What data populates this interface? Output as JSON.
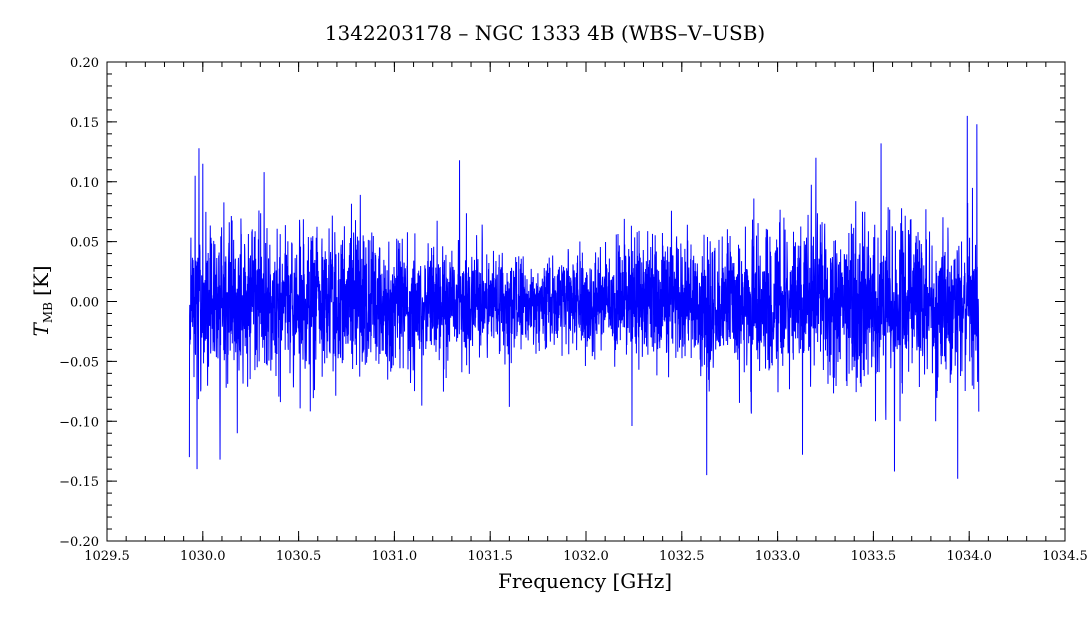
{
  "chart_data": {
    "type": "line",
    "title": "1342203178 – NGC 1333 4B (WBS–V–USB)",
    "xlabel": "Frequency [GHz]",
    "ylabel_main": "T",
    "ylabel_sub": "MB",
    "ylabel_unit": "[K]",
    "xlim": [
      1029.5,
      1034.5
    ],
    "ylim": [
      -0.2,
      0.2
    ],
    "xticks": [
      1029.5,
      1030.0,
      1030.5,
      1031.0,
      1031.5,
      1032.0,
      1032.5,
      1033.0,
      1033.5,
      1034.0,
      1034.5
    ],
    "xtick_labels": [
      "1029.5",
      "1030.0",
      "1030.5",
      "1031.0",
      "1031.5",
      "1032.0",
      "1032.5",
      "1033.0",
      "1033.5",
      "1034.0",
      "1034.5"
    ],
    "yticks": [
      -0.2,
      -0.15,
      -0.1,
      -0.05,
      0.0,
      0.05,
      0.1,
      0.15,
      0.2
    ],
    "ytick_labels": [
      "−0.20",
      "−0.15",
      "−0.10",
      "−0.05",
      "0.00",
      "0.05",
      "0.10",
      "0.15",
      "0.20"
    ],
    "grid": false,
    "legend": "none",
    "series_color": "#0000ff",
    "series": [
      {
        "x_start": 1029.93,
        "x_end": 1034.05,
        "x_step": 0.001,
        "typical_range": [
          -0.08,
          0.08
        ],
        "peak_values": [
          {
            "x": 1029.93,
            "y": -0.13
          },
          {
            "x": 1029.96,
            "y": 0.105
          },
          {
            "x": 1029.97,
            "y": -0.14
          },
          {
            "x": 1029.98,
            "y": 0.128
          },
          {
            "x": 1030.0,
            "y": 0.115
          },
          {
            "x": 1030.09,
            "y": -0.132
          },
          {
            "x": 1030.18,
            "y": -0.11
          },
          {
            "x": 1030.32,
            "y": 0.108
          },
          {
            "x": 1031.34,
            "y": 0.118
          },
          {
            "x": 1031.6,
            "y": -0.088
          },
          {
            "x": 1032.24,
            "y": -0.104
          },
          {
            "x": 1032.63,
            "y": -0.145
          },
          {
            "x": 1033.13,
            "y": -0.128
          },
          {
            "x": 1033.2,
            "y": 0.12
          },
          {
            "x": 1033.54,
            "y": 0.132
          },
          {
            "x": 1033.61,
            "y": -0.142
          },
          {
            "x": 1033.94,
            "y": -0.148
          },
          {
            "x": 1033.99,
            "y": 0.155
          },
          {
            "x": 1034.04,
            "y": 0.148
          },
          {
            "x": 1034.05,
            "y": -0.092
          }
        ]
      }
    ]
  }
}
